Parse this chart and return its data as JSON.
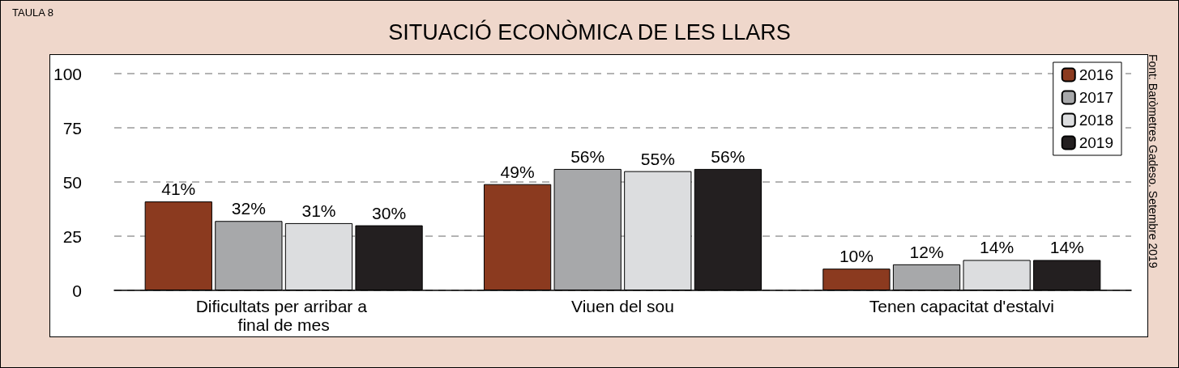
{
  "chart_data": {
    "type": "bar",
    "title": "SITUACIÓ ECONÒMICA DE LES LLARS",
    "categories": [
      "Dificultats per arribar a final de mes",
      "Viuen del sou",
      "Tenen capacitat d'estalvi"
    ],
    "series": [
      {
        "name": "2016",
        "color": "#8b3a1f",
        "values": [
          41,
          49,
          10
        ],
        "value_labels": [
          "41%",
          "49%",
          "10%"
        ]
      },
      {
        "name": "2017",
        "color": "#a7a8aa",
        "values": [
          32,
          56,
          12
        ],
        "value_labels": [
          "32%",
          "56%",
          "12%"
        ]
      },
      {
        "name": "2018",
        "color": "#dcdddf",
        "values": [
          31,
          55,
          14
        ],
        "value_labels": [
          "31%",
          "55%",
          "14%"
        ]
      },
      {
        "name": "2019",
        "color": "#231f20",
        "values": [
          30,
          56,
          14
        ],
        "value_labels": [
          "30%",
          "56%",
          "14%"
        ]
      }
    ],
    "ylim": [
      0,
      100
    ],
    "yticks": [
      0,
      25,
      50,
      75,
      100
    ],
    "grid": "y",
    "legend": "top right",
    "annotations": [
      "TAULA 8",
      "Font: Baròmetres Gadeso. Setembre 2019"
    ]
  }
}
